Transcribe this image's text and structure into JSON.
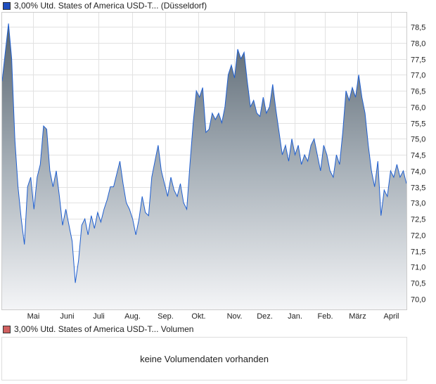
{
  "price_legend": {
    "label": "3,00% Utd. States of America USD-T... (Düsseldorf)",
    "color": "#1f4fbf"
  },
  "volume_legend": {
    "label": "3,00% Utd. States of America USD-T... Volumen",
    "color": "#d06060"
  },
  "volume_message": "keine Volumendaten vorhanden",
  "chart_data": {
    "type": "area",
    "title": "3,00% Utd. States of America USD-T... (Düsseldorf)",
    "ylim": [
      69.6,
      78.9
    ],
    "yticks": [
      "70,0",
      "70,5",
      "71,0",
      "71,5",
      "72,0",
      "72,5",
      "73,0",
      "73,5",
      "74,0",
      "74,5",
      "75,0",
      "75,5",
      "76,0",
      "76,5",
      "77,0",
      "77,5",
      "78,0",
      "78,5"
    ],
    "ytick_values": [
      70,
      70.5,
      71,
      71.5,
      72,
      72.5,
      73,
      73.5,
      74,
      74.5,
      75,
      75.5,
      76,
      76.5,
      77,
      77.5,
      78,
      78.5
    ],
    "xticks": [
      "Mai",
      "Juni",
      "Juli",
      "Aug.",
      "Sep.",
      "Okt.",
      "Nov.",
      "Dez.",
      "Jan.",
      "Feb.",
      "März",
      "April"
    ],
    "grid": true,
    "values": [
      76.8,
      77.7,
      78.6,
      77.5,
      75,
      73.5,
      72.5,
      71.7,
      73.5,
      73.8,
      72.8,
      73.8,
      74.2,
      75.4,
      75.3,
      74,
      73.5,
      74,
      73.2,
      72.3,
      72.8,
      72.3,
      71.8,
      70.5,
      71.2,
      72.3,
      72.5,
      72,
      72.6,
      72.2,
      72.7,
      72.4,
      72.8,
      73.1,
      73.5,
      73.5,
      73.9,
      74.3,
      73.6,
      73,
      72.8,
      72.5,
      72,
      72.5,
      73.2,
      72.7,
      72.6,
      73.8,
      74.3,
      74.8,
      74,
      73.6,
      73.2,
      73.8,
      73.4,
      73.2,
      73.6,
      73,
      72.8,
      74.2,
      75.5,
      76.5,
      76.3,
      76.6,
      75.2,
      75.3,
      75.8,
      75.6,
      75.8,
      75.5,
      76,
      77,
      77.3,
      76.9,
      77.8,
      77.5,
      77.7,
      76.8,
      76,
      76.2,
      75.8,
      75.7,
      76.3,
      75.8,
      76,
      76.7,
      75.9,
      75.2,
      74.5,
      74.8,
      74.3,
      75,
      74.5,
      74.8,
      74.2,
      74.5,
      74.3,
      74.8,
      75,
      74.5,
      74,
      74.8,
      74.5,
      74,
      73.8,
      74.5,
      74.2,
      75.2,
      76.5,
      76.2,
      76.6,
      76.3,
      77,
      76.3,
      75.8,
      74.8,
      74,
      73.5,
      74.3,
      72.6,
      73.4,
      73.2,
      74,
      73.8,
      74.2,
      73.8,
      74,
      73.6
    ]
  }
}
